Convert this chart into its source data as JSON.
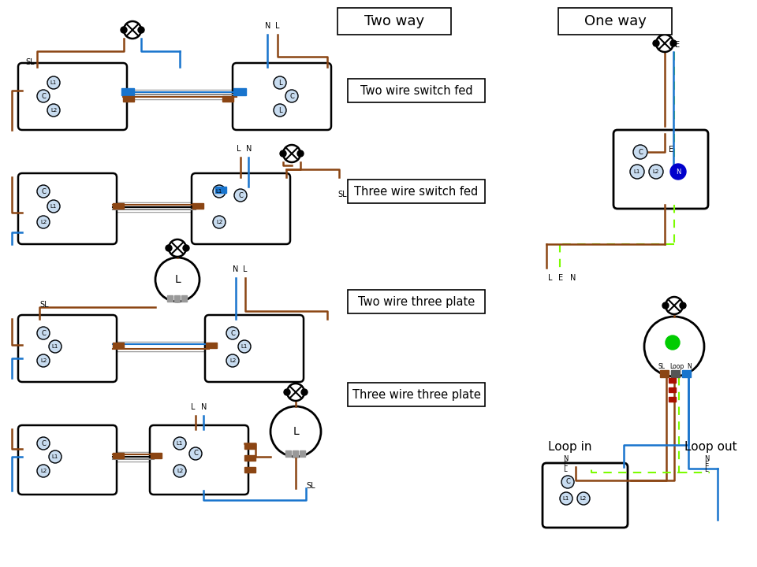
{
  "bg": "#ffffff",
  "brown": "#8B4513",
  "blue": "#1874CD",
  "black": "#000000",
  "gray": "#888888",
  "green_dash": "#7CFC00",
  "red_bar": "#8B1A00",
  "blue_dot_fill": "#0000CC",
  "light_fill": "#C8DCF0",
  "header_two_way": "Two way",
  "header_one_way": "One way",
  "lbl1": "Two wire switch fed",
  "lbl2": "Three wire switch fed",
  "lbl3": "Two wire three plate",
  "lbl4": "Three wire three plate",
  "loop_in": "Loop in",
  "loop_out": "Loop out"
}
